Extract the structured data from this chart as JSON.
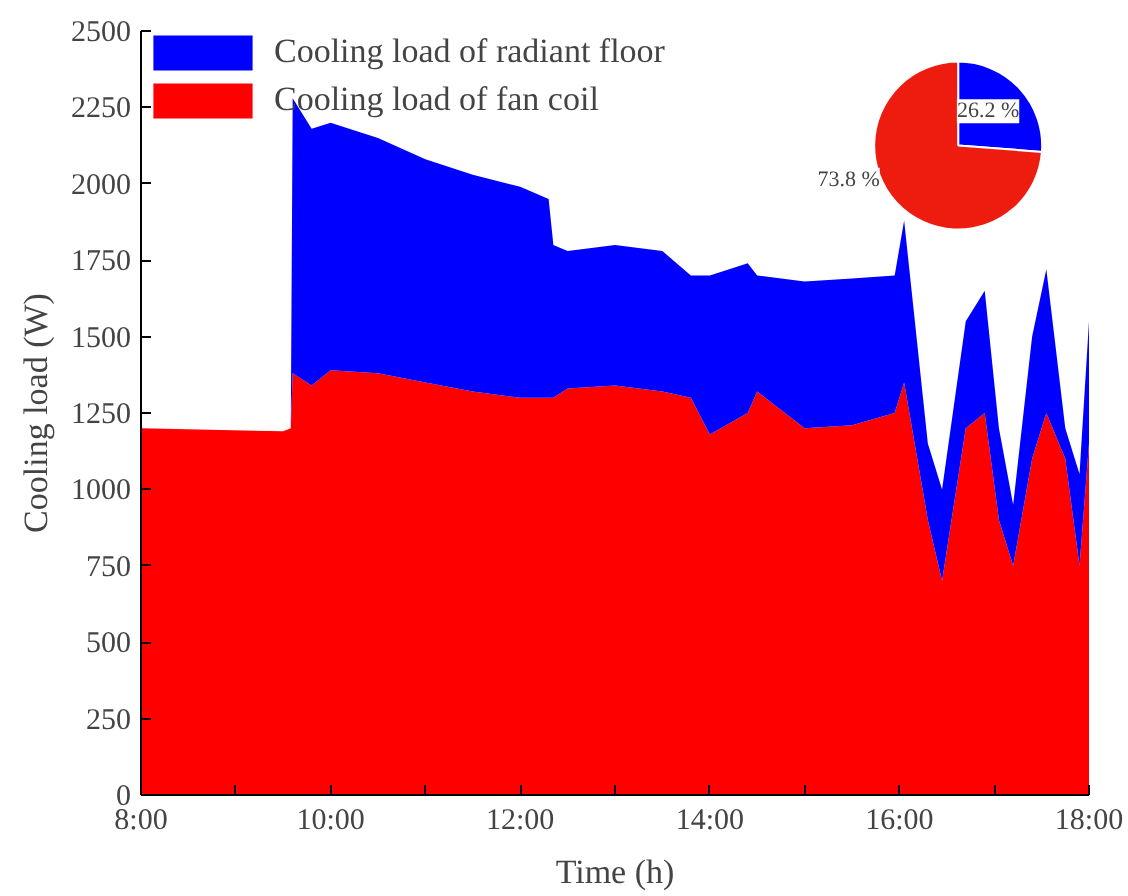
{
  "chart_data": [
    {
      "type": "area",
      "stacked": true,
      "xlabel": "Time (h)",
      "ylabel": "Cooling load (W)",
      "x": [
        8.0,
        9.5,
        9.58,
        9.6,
        9.8,
        10.0,
        10.5,
        11.0,
        11.5,
        12.0,
        12.3,
        12.35,
        12.5,
        13.0,
        13.5,
        13.8,
        14.0,
        14.4,
        14.5,
        15.0,
        15.5,
        15.95,
        16.05,
        16.3,
        16.45,
        16.7,
        16.9,
        17.05,
        17.2,
        17.4,
        17.55,
        17.75,
        17.9,
        18.0
      ],
      "series": [
        {
          "name": "Cooling load of fan coil",
          "color": "#ff0000",
          "values": [
            1200,
            1190,
            1200,
            1380,
            1340,
            1390,
            1380,
            1350,
            1320,
            1300,
            1300,
            1300,
            1330,
            1340,
            1320,
            1300,
            1180,
            1250,
            1320,
            1200,
            1210,
            1250,
            1350,
            900,
            700,
            1200,
            1250,
            900,
            750,
            1100,
            1250,
            1100,
            750,
            1150
          ]
        },
        {
          "name": "Cooling load of radiant floor",
          "color": "#0000ff",
          "values": [
            0,
            0,
            0,
            900,
            840,
            810,
            770,
            730,
            710,
            690,
            650,
            500,
            450,
            460,
            460,
            400,
            520,
            490,
            380,
            480,
            480,
            450,
            530,
            250,
            300,
            350,
            400,
            300,
            200,
            400,
            470,
            100,
            300,
            400
          ]
        }
      ],
      "xlim": [
        8,
        18
      ],
      "ylim": [
        0,
        2500
      ],
      "xticks": [
        {
          "value": 8,
          "label": "8:00"
        },
        {
          "value": 9,
          "label": null
        },
        {
          "value": 10,
          "label": "10:00"
        },
        {
          "value": 11,
          "label": null
        },
        {
          "value": 12,
          "label": "12:00"
        },
        {
          "value": 13,
          "label": null
        },
        {
          "value": 14,
          "label": "14:00"
        },
        {
          "value": 15,
          "label": null
        },
        {
          "value": 16,
          "label": "16:00"
        },
        {
          "value": 17,
          "label": null
        },
        {
          "value": 18,
          "label": "18:00"
        }
      ],
      "yticks": [
        0,
        250,
        500,
        750,
        1000,
        1250,
        1500,
        1750,
        2000,
        2250,
        2500
      ],
      "legend": "top left",
      "grid": false
    },
    {
      "type": "pie",
      "categories": [
        null,
        null
      ],
      "values": [
        26.2,
        73.8
      ],
      "colors": [
        "#0000ff",
        "#ee1c0e"
      ],
      "value_labels": [
        "26.2 %",
        "73.8 %"
      ]
    }
  ]
}
